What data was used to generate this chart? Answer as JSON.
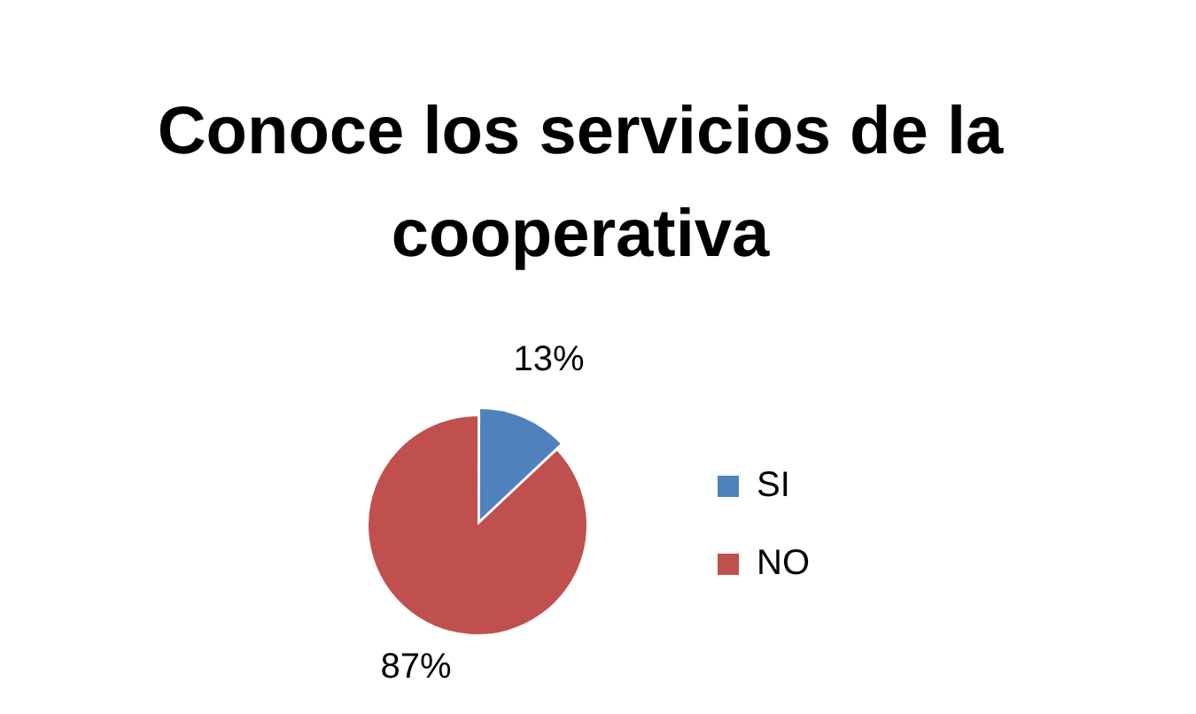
{
  "chart_data": {
    "type": "pie",
    "title": "Conoce los servicios de la cooperativa",
    "categories": [
      "SI",
      "NO"
    ],
    "values": [
      13,
      87
    ],
    "colors": [
      "#4f81bd",
      "#c0504d"
    ],
    "value_labels": [
      "13%",
      "87%"
    ],
    "legend": "right"
  }
}
